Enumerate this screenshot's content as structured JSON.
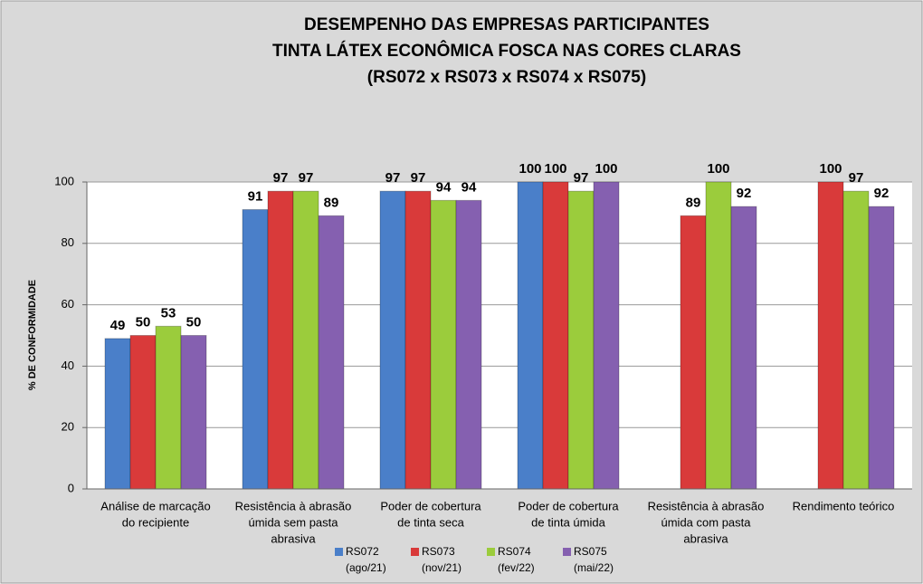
{
  "chart_data": {
    "type": "bar",
    "title": [
      "DESEMPENHO DAS EMPRESAS PARTICIPANTES",
      "TINTA LÁTEX ECONÔMICA FOSCA NAS CORES CLARAS",
      "(RS072 x RS073 x RS074 x RS075)"
    ],
    "y_label": "% DE CONFORMIDADE",
    "categories": [
      [
        "Análise de marcação",
        "do recipiente"
      ],
      [
        "Resistência à abrasão",
        "úmida sem pasta",
        "abrasiva"
      ],
      [
        "Poder de cobertura",
        "de tinta seca"
      ],
      [
        "Poder de cobertura",
        "de tinta úmida"
      ],
      [
        "Resistência à abrasão",
        "úmida com pasta",
        "abrasiva"
      ],
      [
        "Rendimento teórico"
      ]
    ],
    "series": [
      {
        "name": "RS072",
        "period": "(ago/21)",
        "color": "#4a7fc9",
        "label_color": "#3b5f9a",
        "values": [
          49,
          91,
          97,
          100,
          null,
          null
        ]
      },
      {
        "name": "RS073",
        "period": "(nov/21)",
        "color": "#d93a3a",
        "label_color": "#c00000",
        "values": [
          50,
          97,
          97,
          100,
          89,
          100
        ]
      },
      {
        "name": "RS074",
        "period": "(fev/22)",
        "color": "#9bcc3c",
        "label_color": "#1fae4a",
        "values": [
          53,
          97,
          94,
          97,
          100,
          97
        ]
      },
      {
        "name": "RS075",
        "period": "(mai/22)",
        "color": "#8560b0",
        "label_color": "#7030a0",
        "values": [
          50,
          89,
          94,
          100,
          92,
          92
        ]
      }
    ],
    "ylim": [
      0,
      100
    ],
    "yticks": [
      0,
      20,
      40,
      60,
      80,
      100
    ],
    "grid": true,
    "legend": "bottom"
  }
}
